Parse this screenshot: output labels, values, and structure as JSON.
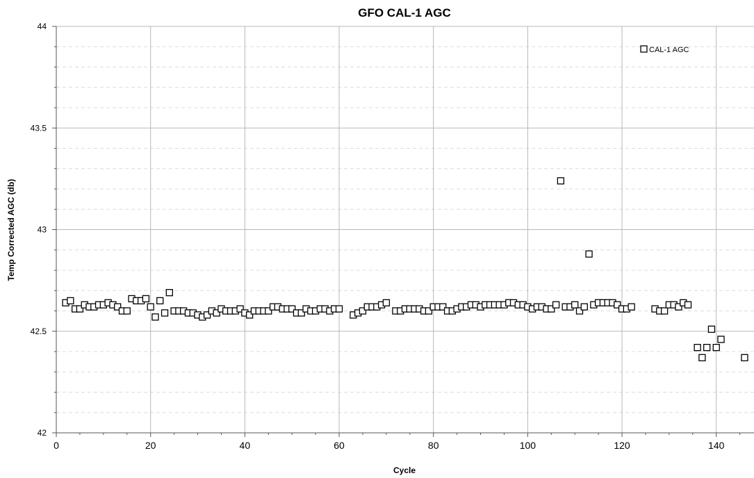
{
  "chart_data": {
    "type": "scatter",
    "title": "GFO CAL-1 AGC",
    "xlabel": "Cycle",
    "ylabel": "Temp Corrected AGC (db)",
    "xlim": [
      0,
      148
    ],
    "ylim": [
      42,
      44
    ],
    "xticks": [
      0,
      20,
      40,
      60,
      80,
      100,
      120,
      140
    ],
    "yticks": [
      42,
      42.5,
      43,
      43.5,
      44
    ],
    "xtick_labels": [
      "0",
      "20",
      "40",
      "60",
      "80",
      "100",
      "120",
      "140"
    ],
    "ytick_labels": [
      "42",
      "42.5",
      "43",
      "43.5",
      "44"
    ],
    "grid": true,
    "legend_position": "top-right",
    "series": [
      {
        "name": "CAL-1 AGC",
        "marker": "hollow-square",
        "color": "#000000",
        "x": [
          2,
          3,
          4,
          5,
          6,
          7,
          8,
          9,
          10,
          11,
          12,
          13,
          14,
          15,
          16,
          17,
          18,
          19,
          20,
          21,
          22,
          23,
          24,
          25,
          26,
          27,
          28,
          29,
          30,
          31,
          32,
          33,
          34,
          35,
          36,
          37,
          38,
          39,
          40,
          41,
          42,
          43,
          44,
          45,
          46,
          47,
          48,
          49,
          50,
          51,
          52,
          53,
          54,
          55,
          56,
          57,
          58,
          59,
          60,
          63,
          64,
          65,
          66,
          67,
          68,
          69,
          70,
          72,
          73,
          74,
          75,
          76,
          77,
          78,
          79,
          80,
          81,
          82,
          83,
          84,
          85,
          86,
          87,
          88,
          89,
          90,
          91,
          92,
          93,
          94,
          95,
          96,
          97,
          98,
          99,
          100,
          101,
          102,
          103,
          104,
          105,
          106,
          107,
          108,
          109,
          110,
          111,
          112,
          113,
          114,
          115,
          116,
          117,
          118,
          119,
          120,
          121,
          122,
          127,
          128,
          129,
          130,
          131,
          132,
          133,
          134,
          136,
          137,
          138,
          139,
          140,
          141,
          146
        ],
        "y": [
          42.64,
          42.65,
          42.61,
          42.61,
          42.63,
          42.62,
          42.62,
          42.63,
          42.63,
          42.64,
          42.63,
          42.62,
          42.6,
          42.6,
          42.66,
          42.65,
          42.65,
          42.66,
          42.62,
          42.57,
          42.65,
          42.59,
          42.69,
          42.6,
          42.6,
          42.6,
          42.59,
          42.59,
          42.58,
          42.57,
          42.58,
          42.6,
          42.59,
          42.61,
          42.6,
          42.6,
          42.6,
          42.61,
          42.59,
          42.58,
          42.6,
          42.6,
          42.6,
          42.6,
          42.62,
          42.62,
          42.61,
          42.61,
          42.61,
          42.59,
          42.59,
          42.61,
          42.6,
          42.6,
          42.61,
          42.61,
          42.6,
          42.61,
          42.61,
          42.58,
          42.59,
          42.6,
          42.62,
          42.62,
          42.62,
          42.63,
          42.64,
          42.6,
          42.6,
          42.61,
          42.61,
          42.61,
          42.61,
          42.6,
          42.6,
          42.62,
          42.62,
          42.62,
          42.6,
          42.6,
          42.61,
          42.62,
          42.62,
          42.63,
          42.63,
          42.62,
          42.63,
          42.63,
          42.63,
          42.63,
          42.63,
          42.64,
          42.64,
          42.63,
          42.63,
          42.62,
          42.61,
          42.62,
          42.62,
          42.61,
          42.61,
          42.63,
          43.24,
          42.62,
          42.62,
          42.63,
          42.6,
          42.62,
          42.88,
          42.63,
          42.64,
          42.64,
          42.64,
          42.64,
          42.63,
          42.61,
          42.61,
          42.62,
          42.61,
          42.6,
          42.6,
          42.63,
          42.63,
          42.62,
          42.64,
          42.63,
          42.42,
          42.37,
          42.42,
          42.51,
          42.42,
          42.46,
          42.37
        ]
      }
    ]
  }
}
